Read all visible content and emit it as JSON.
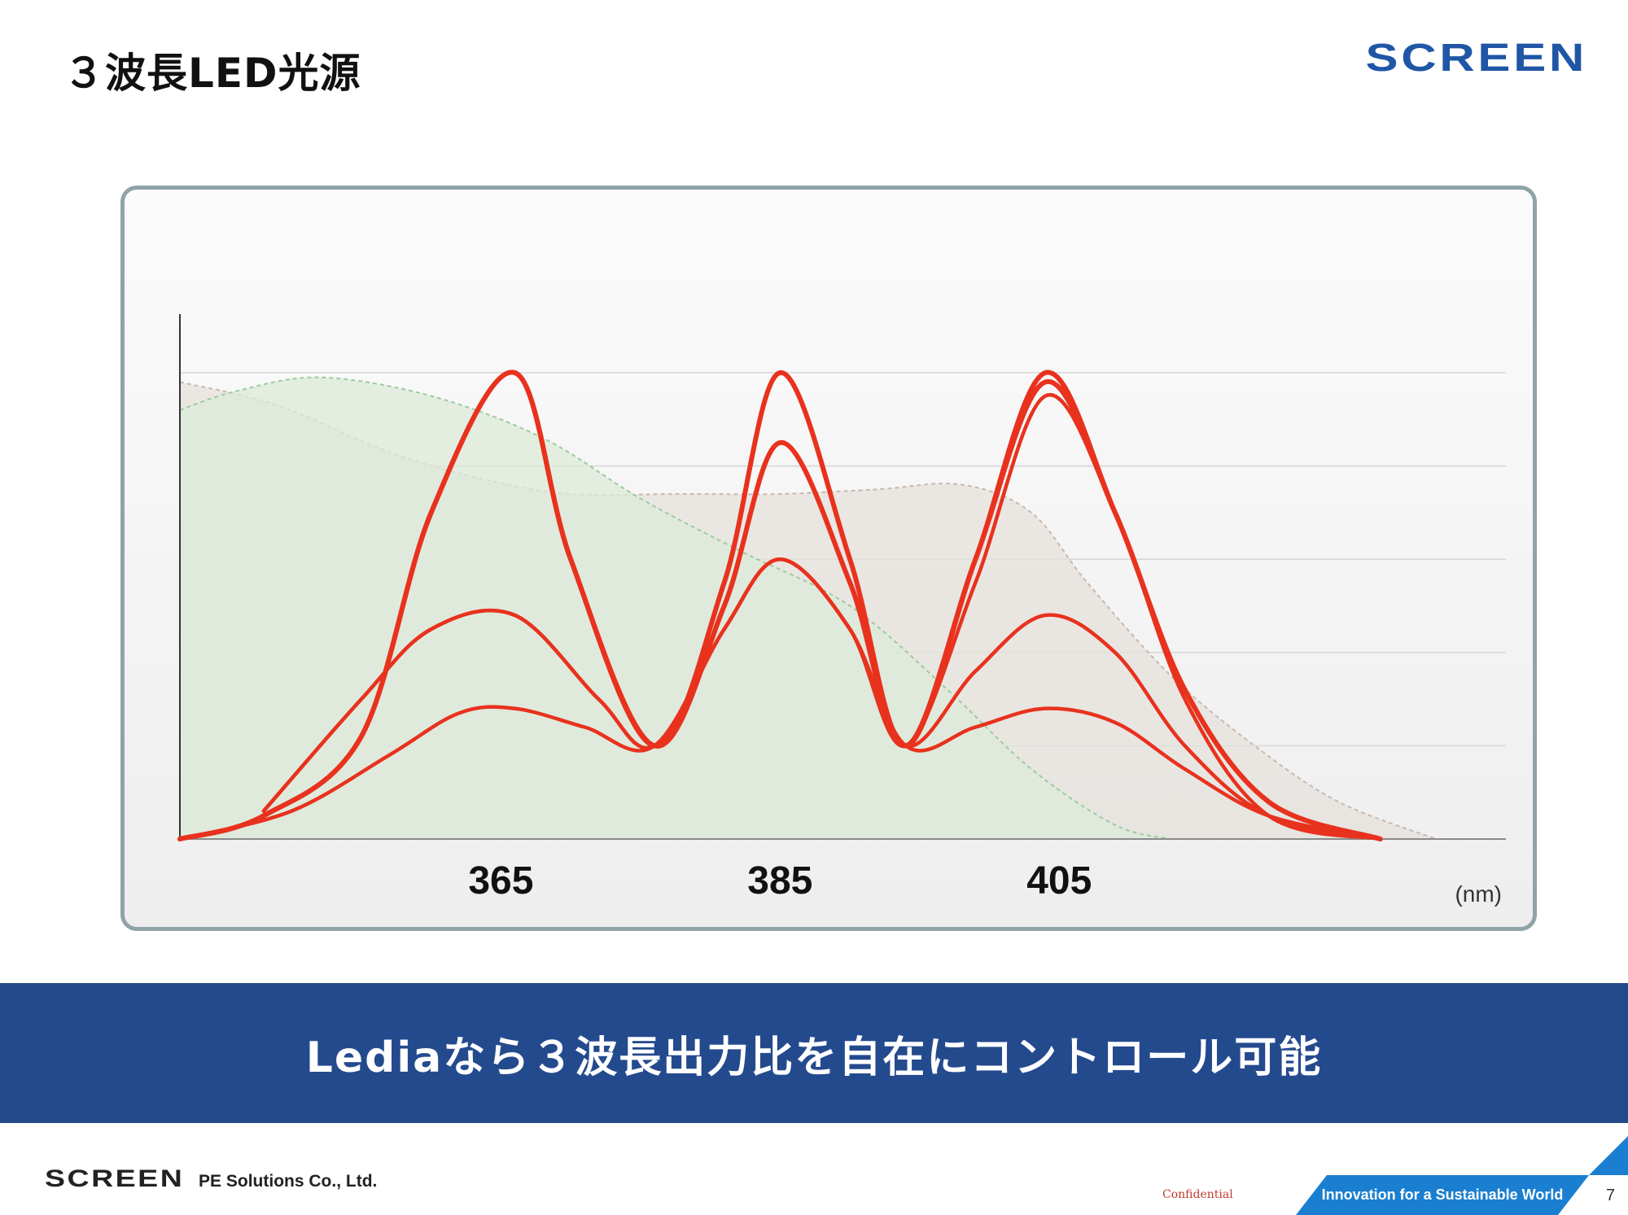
{
  "slide": {
    "title": "３波長LED光源",
    "brand": "SCREEN",
    "banner_text": "Lediaなら３波長出力比を自在にコントロール可能",
    "footer_brand": "SCREEN",
    "footer_company": "PE Solutions Co., Ltd.",
    "confidential": "Confidential",
    "tagline": "Innovation for a Sustainable World",
    "page_number": "7"
  },
  "colors": {
    "curve": "#e8321e",
    "banner": "#244a8e",
    "brand_blue": "#1f56a6",
    "tagline_blue": "#1a7fd0",
    "green_fill": "#dcebd9",
    "grey_fill": "#e6e1dc"
  },
  "chart_data": {
    "type": "line",
    "x_unit": "(nm)",
    "x_ticks": [
      365,
      385,
      405
    ],
    "x_range": [
      342,
      437
    ],
    "y_range": [
      0,
      1
    ],
    "grid": true,
    "background_curves": [
      {
        "style": "green-dashed-filled",
        "x": [
          342,
          346,
          352,
          360,
          368,
          375,
          382,
          390,
          397,
          403,
          409,
          413
        ],
        "y": [
          0.92,
          0.96,
          0.99,
          0.95,
          0.86,
          0.73,
          0.62,
          0.5,
          0.32,
          0.15,
          0.03,
          0
        ]
      },
      {
        "style": "grey-dashed-filled",
        "x": [
          342,
          349,
          357,
          364,
          370,
          378,
          385,
          392,
          398,
          403,
          407,
          413,
          419,
          425,
          432
        ],
        "y": [
          0.98,
          0.93,
          0.83,
          0.77,
          0.74,
          0.74,
          0.74,
          0.75,
          0.76,
          0.7,
          0.55,
          0.35,
          0.2,
          0.08,
          0
        ]
      }
    ],
    "series": [
      {
        "values": [
          [
            342,
            0
          ],
          [
            348,
            0.05
          ],
          [
            355,
            0.22
          ],
          [
            360,
            0.7
          ],
          [
            366,
            1.0
          ],
          [
            370,
            0.6
          ],
          [
            376,
            0.2
          ],
          [
            381,
            0.55
          ],
          [
            385,
            1.0
          ],
          [
            390,
            0.6
          ],
          [
            394,
            0.2
          ],
          [
            399,
            0.6
          ],
          [
            404,
            1.0
          ],
          [
            409,
            0.7
          ],
          [
            414,
            0.32
          ],
          [
            420,
            0.08
          ],
          [
            428,
            0
          ]
        ]
      },
      {
        "values": [
          [
            342,
            0
          ],
          [
            348,
            0.05
          ],
          [
            355,
            0.22
          ],
          [
            360,
            0.7
          ],
          [
            366,
            1.0
          ],
          [
            370,
            0.6
          ],
          [
            376,
            0.2
          ],
          [
            381,
            0.5
          ],
          [
            385,
            0.85
          ],
          [
            390,
            0.55
          ],
          [
            394,
            0.2
          ],
          [
            399,
            0.6
          ],
          [
            404,
            0.98
          ],
          [
            409,
            0.7
          ],
          [
            414,
            0.32
          ],
          [
            420,
            0.08
          ],
          [
            428,
            0
          ]
        ]
      },
      {
        "values": [
          [
            348,
            0.06
          ],
          [
            355,
            0.3
          ],
          [
            360,
            0.45
          ],
          [
            366,
            0.48
          ],
          [
            372,
            0.3
          ],
          [
            376,
            0.2
          ],
          [
            381,
            0.45
          ],
          [
            385,
            0.6
          ],
          [
            390,
            0.45
          ],
          [
            394,
            0.2
          ],
          [
            399,
            0.55
          ],
          [
            404,
            0.95
          ],
          [
            409,
            0.7
          ],
          [
            414,
            0.3
          ],
          [
            420,
            0.05
          ],
          [
            428,
            0
          ]
        ]
      },
      {
        "values": [
          [
            348,
            0.06
          ],
          [
            355,
            0.3
          ],
          [
            360,
            0.45
          ],
          [
            366,
            0.48
          ],
          [
            372,
            0.3
          ],
          [
            376,
            0.2
          ],
          [
            381,
            0.45
          ],
          [
            385,
            0.6
          ],
          [
            390,
            0.45
          ],
          [
            394,
            0.2
          ],
          [
            399,
            0.36
          ],
          [
            404,
            0.48
          ],
          [
            409,
            0.4
          ],
          [
            414,
            0.2
          ],
          [
            420,
            0.05
          ],
          [
            428,
            0
          ]
        ]
      },
      {
        "values": [
          [
            342,
            0
          ],
          [
            350,
            0.06
          ],
          [
            357,
            0.18
          ],
          [
            362,
            0.27
          ],
          [
            366,
            0.28
          ],
          [
            371,
            0.24
          ],
          [
            376,
            0.2
          ],
          [
            381,
            0.45
          ],
          [
            385,
            0.6
          ],
          [
            390,
            0.45
          ],
          [
            394,
            0.2
          ],
          [
            399,
            0.24
          ],
          [
            404,
            0.28
          ],
          [
            409,
            0.25
          ],
          [
            414,
            0.15
          ],
          [
            420,
            0.05
          ],
          [
            428,
            0
          ]
        ]
      }
    ]
  }
}
